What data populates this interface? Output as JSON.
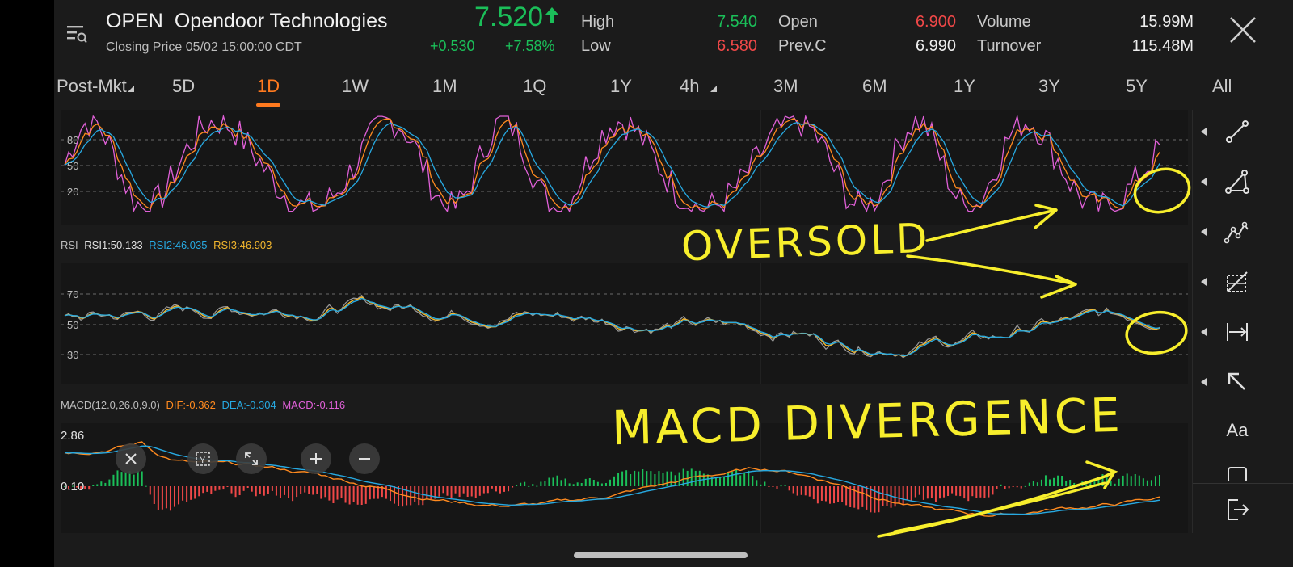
{
  "header": {
    "symbol": "OPEN",
    "company": "Opendoor Technologies",
    "subtitle": "Closing Price  05/02 15:00:00 CDT",
    "price": "7.520",
    "price_arrow": "up-arrow-icon",
    "change": "+0.530",
    "change_pct": "+7.58%",
    "quotes": {
      "high_label": "High",
      "high_value": "7.540",
      "low_label": "Low",
      "low_value": "6.580",
      "open_label": "Open",
      "open_value": "6.900",
      "prevc_label": "Prev.C",
      "prevc_value": "6.990",
      "volume_label": "Volume",
      "volume_value": "15.99M",
      "turnover_label": "Turnover",
      "turnover_value": "115.48M"
    }
  },
  "tabs": {
    "active": "1D",
    "post": "Post-Mkt",
    "t5d": "5D",
    "t1d": "1D",
    "t1w": "1W",
    "t1m": "1M",
    "t1q": "1Q",
    "t1y": "1Y",
    "t4h": "4h",
    "r3m": "3M",
    "r6m": "6M",
    "r1y": "1Y",
    "r3y": "3Y",
    "r5y": "5Y",
    "rall": "All"
  },
  "kdj_axis": {
    "t80": "80",
    "t50": "50",
    "t20": "20"
  },
  "rsi": {
    "name": "RSI",
    "rsi1": "RSI1:50.133",
    "rsi2": "RSI2:46.035",
    "rsi3": "RSI3:46.903",
    "t70": "70",
    "t50": "50",
    "t30": "30"
  },
  "macd": {
    "name": "MACD(12.0,26.0,9.0)",
    "dif": "DIF:-0.362",
    "dea": "DEA:-0.304",
    "macd": "MACD:-0.116",
    "top_tick": "2.86",
    "mid_tick": "0.10"
  },
  "annotations": {
    "oversold": "OVERSOLD",
    "macd_divergence": "MACD DIVERGENCE"
  },
  "toolbar": {
    "text_tool": "Aa"
  },
  "colors": {
    "up": "#1bbf59",
    "down": "#f04848",
    "accent": "#ff7a1f",
    "rsi1": "#d9d9d9",
    "rsi2": "#27a9e1",
    "rsi3": "#f5b82e",
    "dif": "#ff8a1f",
    "dea": "#27a9e1",
    "macd": "#e060d8",
    "annotation": "#f7ee2c"
  }
}
